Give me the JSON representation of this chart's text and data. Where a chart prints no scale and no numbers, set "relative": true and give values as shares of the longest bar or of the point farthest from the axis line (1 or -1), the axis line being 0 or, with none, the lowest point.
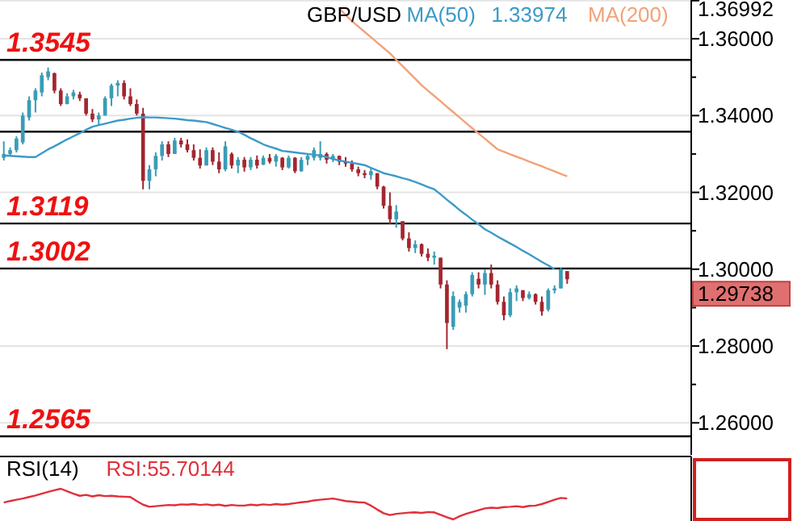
{
  "chart_data": [
    {
      "type": "candlestick",
      "title": "GBP/USD",
      "categories": [
        null,
        null,
        null,
        null,
        null,
        null,
        null,
        null,
        null,
        null,
        null,
        null,
        null,
        null,
        null,
        null,
        null,
        null,
        null,
        null,
        null,
        null,
        null,
        null,
        null,
        null,
        null,
        null,
        null,
        null,
        null,
        null,
        null,
        null,
        null,
        null,
        null,
        null,
        null,
        null,
        null,
        null,
        null,
        null,
        null,
        null,
        null,
        null,
        null,
        null,
        null,
        null,
        null,
        null,
        null,
        null,
        null,
        null,
        null,
        null,
        null,
        null,
        null,
        null,
        null,
        null,
        null,
        null,
        null,
        null,
        null,
        null,
        null,
        null,
        null,
        null,
        null,
        null,
        null,
        null,
        null,
        null,
        null,
        null,
        null,
        null,
        null,
        null,
        null,
        null,
        null,
        null,
        null,
        null,
        null,
        null,
        null,
        null,
        null,
        null,
        null,
        null,
        null,
        null,
        null,
        null,
        null,
        null,
        null
      ],
      "ohlc": [
        [
          1.329,
          1.3333,
          1.3283,
          1.33
        ],
        [
          1.33,
          1.3317,
          1.3296,
          1.331
        ],
        [
          1.331,
          1.3346,
          1.3304,
          1.334
        ],
        [
          1.333,
          1.3408,
          1.3325,
          1.34
        ],
        [
          1.3395,
          1.345,
          1.3387,
          1.344
        ],
        [
          1.344,
          1.3471,
          1.3408,
          1.3465
        ],
        [
          1.346,
          1.3512,
          1.345,
          1.3505
        ],
        [
          1.35,
          1.3525,
          1.3492,
          1.3515
        ],
        [
          1.351,
          1.3512,
          1.3458,
          1.3465
        ],
        [
          1.3465,
          1.3471,
          1.3425,
          1.343
        ],
        [
          1.343,
          1.3458,
          1.3429,
          1.345
        ],
        [
          1.345,
          1.3467,
          1.3442,
          1.346
        ],
        [
          1.3455,
          1.3462,
          1.3438,
          1.3445
        ],
        [
          1.3445,
          1.3445,
          1.34,
          1.3405
        ],
        [
          1.3405,
          1.3417,
          1.3383,
          1.339
        ],
        [
          1.339,
          1.3408,
          1.3375,
          1.34
        ],
        [
          1.34,
          1.345,
          1.34,
          1.3445
        ],
        [
          1.3445,
          1.3483,
          1.3425,
          1.3478
        ],
        [
          1.3478,
          1.3492,
          1.345,
          1.3485
        ],
        [
          1.3485,
          1.3492,
          1.3442,
          1.345
        ],
        [
          1.345,
          1.3471,
          1.3425,
          1.343
        ],
        [
          1.343,
          1.3442,
          1.34,
          1.3405
        ],
        [
          1.3405,
          1.342,
          1.3208,
          1.323
        ],
        [
          1.323,
          1.3271,
          1.3208,
          1.326
        ],
        [
          1.326,
          1.3304,
          1.3242,
          1.3295
        ],
        [
          1.3295,
          1.3333,
          1.3283,
          1.3325
        ],
        [
          1.3325,
          1.3333,
          1.3292,
          1.33
        ],
        [
          1.33,
          1.3342,
          1.33,
          1.3335
        ],
        [
          1.3335,
          1.3342,
          1.3317,
          1.3325
        ],
        [
          1.3325,
          1.3338,
          1.3304,
          1.331
        ],
        [
          1.331,
          1.3325,
          1.3283,
          1.329
        ],
        [
          1.329,
          1.3312,
          1.3262,
          1.327
        ],
        [
          1.327,
          1.3317,
          1.327,
          1.331
        ],
        [
          1.331,
          1.3317,
          1.3271,
          1.328
        ],
        [
          1.328,
          1.3304,
          1.325,
          1.326
        ],
        [
          1.326,
          1.3333,
          1.3255,
          1.332
        ],
        [
          1.33,
          1.3304,
          1.3262,
          1.327
        ],
        [
          1.327,
          1.3292,
          1.325,
          1.3285
        ],
        [
          1.3285,
          1.3292,
          1.3254,
          1.3265
        ],
        [
          1.3265,
          1.3292,
          1.3258,
          1.3285
        ],
        [
          1.3285,
          1.3296,
          1.3262,
          1.327
        ],
        [
          1.3272,
          1.3296,
          1.3271,
          1.329
        ],
        [
          1.329,
          1.33,
          1.3275,
          1.328
        ],
        [
          1.328,
          1.33,
          1.3267,
          1.3295
        ],
        [
          1.329,
          1.3292,
          1.3258,
          1.3265
        ],
        [
          1.3265,
          1.3296,
          1.3262,
          1.329
        ],
        [
          1.329,
          1.3292,
          1.325,
          1.3255
        ],
        [
          1.3255,
          1.3292,
          1.3254,
          1.3285
        ],
        [
          1.3285,
          1.33,
          1.3271,
          1.3295
        ],
        [
          1.329,
          1.3317,
          1.3283,
          1.331
        ],
        [
          1.329,
          1.3333,
          1.3283,
          1.33
        ],
        [
          1.33,
          1.3304,
          1.3275,
          1.3285
        ],
        [
          1.3285,
          1.33,
          1.3279,
          1.3295
        ],
        [
          1.3295,
          1.3296,
          1.3271,
          1.328
        ],
        [
          1.328,
          1.3292,
          1.3267,
          1.3275
        ],
        [
          1.3275,
          1.3283,
          1.3254,
          1.326
        ],
        [
          1.326,
          1.3267,
          1.3242,
          1.325
        ],
        [
          1.325,
          1.3258,
          1.3237,
          1.3245
        ],
        [
          1.3245,
          1.3262,
          1.3233,
          1.3255
        ],
        [
          1.325,
          1.325,
          1.3208,
          1.3215
        ],
        [
          1.3215,
          1.3217,
          1.3158,
          1.3165
        ],
        [
          1.3165,
          1.32,
          1.3117,
          1.313
        ],
        [
          1.313,
          1.3167,
          1.3108,
          1.315
        ],
        [
          1.3125,
          1.3125,
          1.3075,
          1.308
        ],
        [
          1.308,
          1.3096,
          1.3046,
          1.3055
        ],
        [
          1.3055,
          1.3075,
          1.3042,
          1.3065
        ],
        [
          1.3065,
          1.3067,
          1.3033,
          1.304
        ],
        [
          1.304,
          1.3054,
          1.3021,
          1.303
        ],
        [
          1.303,
          1.3046,
          1.3012,
          1.3035
        ],
        [
          1.303,
          1.303,
          1.295,
          1.296
        ],
        [
          1.296,
          1.2971,
          1.2792,
          1.286
        ],
        [
          1.285,
          1.2942,
          1.2842,
          1.293
        ],
        [
          1.29,
          1.2921,
          1.2887,
          1.2915
        ],
        [
          1.2905,
          1.2942,
          1.2887,
          1.2935
        ],
        [
          1.2935,
          1.2992,
          1.2929,
          1.2985
        ],
        [
          1.2975,
          1.2992,
          1.295,
          1.296
        ],
        [
          1.296,
          1.3,
          1.2933,
          1.299
        ],
        [
          1.299,
          1.3012,
          1.295,
          1.296
        ],
        [
          1.296,
          1.2971,
          1.2908,
          1.2915
        ],
        [
          1.2915,
          1.2929,
          1.2867,
          1.288
        ],
        [
          1.288,
          1.295,
          1.2875,
          1.294
        ],
        [
          1.294,
          1.2958,
          1.2917,
          1.295
        ],
        [
          1.2945,
          1.2946,
          1.2917,
          1.2925
        ],
        [
          1.2925,
          1.2942,
          1.2921,
          1.2935
        ],
        [
          1.2935,
          1.2937,
          1.2908,
          1.2915
        ],
        [
          1.2915,
          1.2929,
          1.2879,
          1.289
        ],
        [
          1.2895,
          1.295,
          1.289,
          1.2945
        ],
        [
          1.2945,
          1.2958,
          1.2937,
          1.295
        ],
        [
          1.295,
          1.3004,
          1.295,
          1.3
        ],
        [
          1.2995,
          1.2995,
          1.2962,
          1.29738
        ],
        null,
        null,
        null,
        null,
        null,
        null,
        null,
        null,
        null,
        null,
        null,
        null,
        null,
        null,
        null,
        null,
        null,
        null,
        null
      ],
      "series": [
        {
          "type": "line",
          "name": "MA(50)",
          "color": "#3d9ac9",
          "values": [
            1.3296,
            1.3295,
            1.3294,
            1.3293,
            1.3292,
            1.3292,
            1.3302,
            1.3312,
            1.332,
            1.3329,
            1.3338,
            1.3346,
            1.3354,
            1.3363,
            1.3371,
            1.3375,
            1.3379,
            1.3383,
            1.3387,
            1.3389,
            1.3392,
            1.3394,
            1.3396,
            1.3395,
            1.3395,
            1.3394,
            1.3393,
            1.3392,
            1.339,
            1.3388,
            1.3387,
            1.3385,
            1.3383,
            1.3378,
            1.3373,
            1.3368,
            1.3363,
            1.3358,
            1.335,
            1.3341,
            1.3333,
            1.3325,
            1.3319,
            1.3314,
            1.3308,
            1.3306,
            1.3304,
            1.3302,
            1.33,
            1.3298,
            1.3296,
            1.3292,
            1.3287,
            1.3283,
            1.328,
            1.3277,
            1.3274,
            1.3271,
            1.3264,
            1.3257,
            1.325,
            1.3246,
            1.3242,
            1.3237,
            1.3233,
            1.3227,
            1.3221,
            1.3214,
            1.3208,
            1.3195,
            1.3181,
            1.3168,
            1.3154,
            1.3142,
            1.3129,
            1.3117,
            1.3104,
            1.3095,
            1.3085,
            1.3076,
            1.3067,
            1.3058,
            1.3048,
            1.3039,
            1.3029,
            1.3019,
            1.301,
            1.3,
            null,
            null,
            null,
            null,
            null,
            null,
            null,
            null,
            null,
            null,
            null,
            null,
            null,
            null,
            null,
            null,
            null,
            null,
            null,
            null,
            null
          ]
        },
        {
          "type": "line",
          "name": "MA(200)",
          "color": "#f2a27a",
          "values": [
            null,
            null,
            null,
            null,
            null,
            null,
            null,
            null,
            null,
            null,
            null,
            null,
            null,
            null,
            null,
            null,
            null,
            null,
            null,
            null,
            null,
            null,
            null,
            null,
            null,
            null,
            null,
            null,
            null,
            null,
            null,
            null,
            null,
            null,
            null,
            null,
            null,
            null,
            null,
            null,
            null,
            null,
            null,
            null,
            null,
            null,
            null,
            null,
            null,
            null,
            null,
            null,
            null,
            1.3679,
            1.3662,
            1.3646,
            1.3632,
            1.3618,
            1.3604,
            1.359,
            1.3576,
            1.3562,
            1.3545,
            1.3529,
            1.3512,
            1.3496,
            1.3479,
            1.3465,
            1.3451,
            1.3437,
            1.3423,
            1.3409,
            1.3395,
            1.3381,
            1.3367,
            1.3353,
            1.334,
            1.3326,
            1.3312,
            1.3306,
            1.3299,
            1.3293,
            1.3287,
            1.328,
            1.3274,
            1.3268,
            1.3261,
            1.3255,
            1.3248,
            1.3242,
            null,
            null,
            null,
            null,
            null,
            null,
            null,
            null,
            null,
            null,
            null,
            null,
            null,
            null,
            null,
            null,
            null,
            null,
            null
          ]
        }
      ],
      "ylim": [
        1.2525,
        1.36992
      ],
      "yticks": [
        {
          "value": 1.26,
          "label": "1.26000"
        },
        {
          "value": 1.27,
          "label": null
        },
        {
          "value": 1.28,
          "label": "1.28000"
        },
        {
          "value": 1.29,
          "label": null
        },
        {
          "value": 1.3,
          "label": "1.30000"
        },
        {
          "value": 1.31,
          "label": null
        },
        {
          "value": 1.32,
          "label": "1.32000"
        },
        {
          "value": 1.33,
          "label": null
        },
        {
          "value": 1.34,
          "label": "1.34000"
        },
        {
          "value": 1.35,
          "label": null
        },
        {
          "value": 1.36,
          "label": "1.36000"
        },
        {
          "value": 1.36992,
          "label": "1.36992"
        }
      ],
      "grid": "y",
      "legend": "top",
      "marker": "none",
      "line_style": "solid",
      "ref_lines": [
        {
          "axis": "y",
          "value": 1.3545,
          "label": "1.3545",
          "color": "#000000"
        },
        {
          "axis": "y",
          "value": 1.3358,
          "color": "#000000"
        },
        {
          "axis": "y",
          "value": 1.3119,
          "label": "1.3119",
          "color": "#000000"
        },
        {
          "axis": "y",
          "value": 1.3002,
          "label": "1.3002",
          "color": "#000000"
        },
        {
          "axis": "y",
          "value": 1.2565,
          "label": "1.2565",
          "color": "#000000"
        }
      ],
      "annotations": [
        "1.33974",
        "1.29738"
      ]
    },
    {
      "type": "line",
      "title": "RSI(14)",
      "relative": true,
      "legend": "top left",
      "categories": [
        null,
        null,
        null,
        null,
        null,
        null,
        null,
        null,
        null,
        null,
        null,
        null,
        null,
        null,
        null,
        null,
        null,
        null,
        null,
        null,
        null,
        null,
        null,
        null,
        null,
        null,
        null,
        null,
        null,
        null,
        null,
        null,
        null,
        null,
        null,
        null,
        null,
        null,
        null,
        null,
        null,
        null,
        null,
        null,
        null,
        null,
        null,
        null,
        null,
        null,
        null,
        null,
        null,
        null,
        null,
        null,
        null,
        null,
        null,
        null,
        null,
        null,
        null,
        null,
        null,
        null,
        null,
        null,
        null,
        null,
        null,
        null,
        null,
        null,
        null,
        null,
        null,
        null,
        null,
        null,
        null,
        null,
        null,
        null,
        null,
        null,
        null,
        null,
        null,
        null,
        null,
        null,
        null,
        null,
        null,
        null,
        null,
        null,
        null,
        null,
        null,
        null,
        null,
        null,
        null,
        null,
        null,
        null,
        null
      ],
      "series": [
        {
          "name": "RSI:55.70144",
          "color": "#e0303a",
          "values": [
            0.55,
            0.6,
            0.64,
            0.68,
            0.73,
            0.78,
            0.84,
            0.9,
            0.95,
            1.0,
            0.92,
            0.84,
            0.77,
            0.8,
            0.75,
            0.79,
            0.76,
            0.77,
            0.75,
            0.74,
            0.73,
            0.6,
            0.48,
            0.41,
            0.43,
            0.45,
            0.47,
            0.46,
            0.49,
            0.48,
            0.5,
            0.47,
            0.49,
            0.46,
            0.48,
            0.44,
            0.47,
            0.45,
            0.45,
            0.48,
            0.46,
            0.49,
            0.47,
            0.5,
            0.48,
            0.5,
            0.53,
            0.56,
            0.58,
            0.62,
            0.64,
            0.66,
            0.68,
            0.64,
            0.6,
            0.58,
            0.56,
            0.55,
            0.45,
            0.32,
            0.2,
            0.14,
            0.18,
            0.2,
            0.22,
            0.23,
            0.21,
            0.24,
            0.23,
            0.15,
            0.07,
            0,
            0.1,
            0.18,
            0.24,
            0.3,
            0.36,
            0.38,
            0.37,
            0.4,
            0.41,
            0.43,
            0.4,
            0.44,
            0.45,
            0.5,
            0.57,
            0.64,
            0.7,
            0.68,
            null,
            null,
            null,
            null,
            null,
            null,
            null,
            null,
            null,
            null,
            null,
            null,
            null,
            null,
            null,
            null,
            null,
            null,
            null
          ]
        }
      ]
    }
  ]
}
